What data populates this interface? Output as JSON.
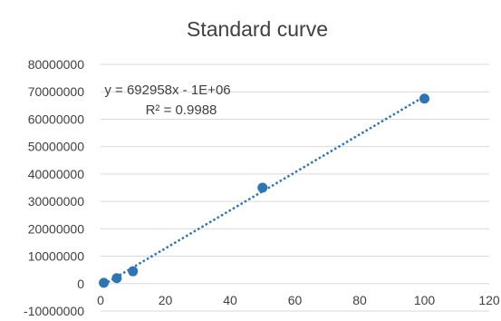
{
  "chart_data": {
    "type": "scatter",
    "title": "Standard curve",
    "xlabel": "",
    "ylabel": "",
    "xlim": [
      0,
      120
    ],
    "ylim": [
      -10000000,
      80000000
    ],
    "x_ticks": [
      0,
      20,
      40,
      60,
      80,
      100,
      120
    ],
    "x_tick_labels": [
      "0",
      "20",
      "40",
      "60",
      "80",
      "100",
      "120"
    ],
    "y_ticks": [
      -10000000,
      0,
      10000000,
      20000000,
      30000000,
      40000000,
      50000000,
      60000000,
      70000000,
      80000000
    ],
    "y_tick_labels": [
      "-10000000",
      "0",
      "10000000",
      "20000000",
      "30000000",
      "40000000",
      "50000000",
      "60000000",
      "70000000",
      "80000000"
    ],
    "grid": "horizontal",
    "legend": "none",
    "series": [
      {
        "x": [
          1,
          5,
          10,
          50,
          100
        ],
        "y": [
          300000,
          2000000,
          4500000,
          35000000,
          67500000
        ],
        "color": "#2e75b6"
      }
    ],
    "trendline": {
      "type": "linear",
      "slope": 692958,
      "intercept": -1000000,
      "x_range": [
        1,
        100
      ],
      "style": "dotted",
      "color": "#2e75b6",
      "equation_label": "y = 692958x - 1E+06",
      "r_squared_label": "R² = 0.9988"
    },
    "colors": {
      "marker": "#2e75b6",
      "gridline": "#d9d9d9",
      "tick_text": "#404040",
      "title_text": "#404040"
    }
  }
}
